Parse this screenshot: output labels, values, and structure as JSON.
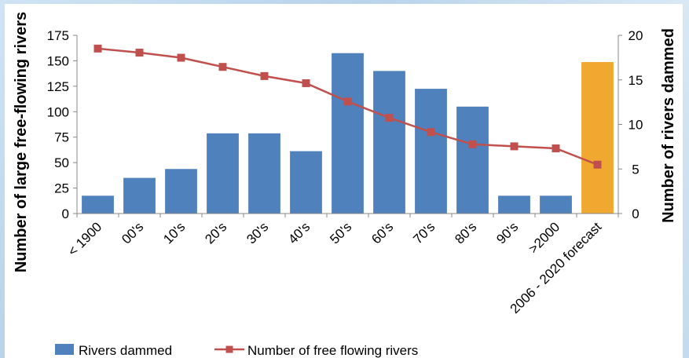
{
  "chart_data": {
    "type": "bar",
    "categories": [
      "< 1900",
      "00's",
      "10's",
      "20's",
      "30's",
      "40's",
      "50's",
      "60's",
      "70's",
      "80's",
      "90's",
      ">2000",
      "2006 - 2020 forecast"
    ],
    "series": [
      {
        "name": "Rivers dammed",
        "type": "bar",
        "axis": "right",
        "values": [
          2,
          4,
          5,
          9,
          9,
          7,
          18,
          16,
          14,
          12,
          2,
          2,
          17
        ],
        "color": "#4f81bd",
        "highlight": {
          "index": 12,
          "color": "#f0a830"
        }
      },
      {
        "name": "Number of free flowing rivers",
        "type": "line",
        "axis": "left",
        "values": [
          162,
          158,
          153,
          144,
          135,
          128,
          110,
          94,
          80,
          68,
          66,
          64,
          48
        ],
        "color": "#c0504d"
      }
    ],
    "ylabel": "Number of large free-flowing rivers",
    "y2label": "Number of rivers dammed",
    "ylim": [
      0,
      175
    ],
    "y2lim": [
      0,
      20
    ],
    "yticks": [
      0,
      25,
      50,
      75,
      100,
      125,
      150,
      175
    ],
    "y2ticks": [
      0,
      5,
      10,
      15,
      20
    ],
    "legend_position": "bottom",
    "grid": false
  }
}
